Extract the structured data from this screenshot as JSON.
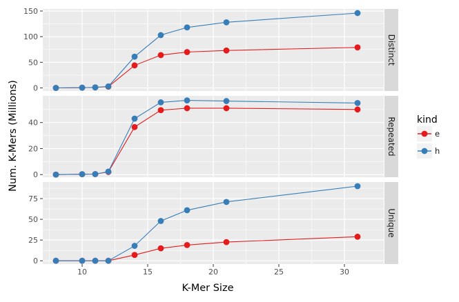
{
  "chart_data": {
    "type": "line",
    "xlabel": "K-Mer Size",
    "ylabel": "Num. K-Mers (Millions)",
    "x": [
      8,
      10,
      11,
      12,
      14,
      16,
      18,
      21,
      31
    ],
    "xlim": [
      7,
      33
    ],
    "xticks": [
      10,
      15,
      20,
      25,
      30
    ],
    "legend": {
      "title": "kind",
      "placement": "right",
      "entries": [
        {
          "name": "e",
          "color": "#e41a1c"
        },
        {
          "name": "h",
          "color": "#377eb8"
        }
      ]
    },
    "grid": true,
    "panels": [
      {
        "label": "Distinct",
        "ylim": [
          -6,
          154
        ],
        "yticks": [
          0,
          50,
          100,
          150
        ],
        "series": [
          {
            "name": "e",
            "color": "#e41a1c",
            "values": [
              0.1,
              0.5,
              1,
              2.5,
              44,
              64,
              70,
              73,
              79
            ]
          },
          {
            "name": "h",
            "color": "#377eb8",
            "values": [
              0.1,
              0.5,
              1,
              3,
              61,
              103,
              118,
              128,
              146
            ]
          }
        ]
      },
      {
        "label": "Repeated",
        "ylim": [
          -2,
          60.5
        ],
        "yticks": [
          0,
          20,
          40
        ],
        "series": [
          {
            "name": "e",
            "color": "#e41a1c",
            "values": [
              0,
              0.3,
              0.4,
              2,
              36.5,
              49.5,
              51,
              51,
              50
            ]
          },
          {
            "name": "h",
            "color": "#377eb8",
            "values": [
              0,
              0.3,
              0.4,
              2.3,
              43,
              55.5,
              57,
              56.5,
              55
            ]
          }
        ]
      },
      {
        "label": "Unique",
        "ylim": [
          -4,
          95
        ],
        "yticks": [
          0,
          25,
          50,
          75
        ],
        "series": [
          {
            "name": "e",
            "color": "#e41a1c",
            "values": [
              0,
              0,
              0,
              0,
              7,
              15,
              19,
              22.5,
              29
            ]
          },
          {
            "name": "h",
            "color": "#377eb8",
            "values": [
              0,
              0,
              0,
              0,
              18,
              48,
              61,
              71,
              90
            ]
          }
        ]
      }
    ]
  }
}
